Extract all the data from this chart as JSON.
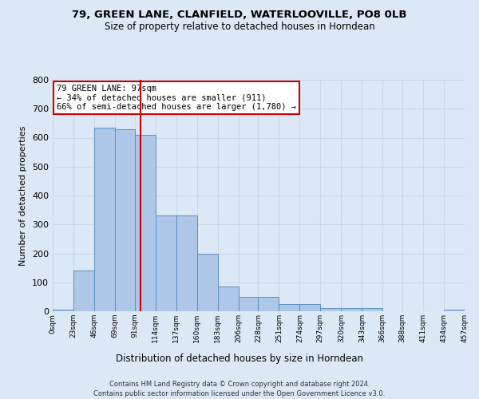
{
  "title1": "79, GREEN LANE, CLANFIELD, WATERLOOVILLE, PO8 0LB",
  "title2": "Size of property relative to detached houses in Horndean",
  "xlabel": "Distribution of detached houses by size in Horndean",
  "ylabel": "Number of detached properties",
  "footer1": "Contains HM Land Registry data © Crown copyright and database right 2024.",
  "footer2": "Contains public sector information licensed under the Open Government Licence v3.0.",
  "annotation_title": "79 GREEN LANE: 97sqm",
  "annotation_line1": "← 34% of detached houses are smaller (911)",
  "annotation_line2": "66% of semi-detached houses are larger (1,780) →",
  "property_size": 97,
  "bin_edges": [
    0,
    23,
    46,
    69,
    91,
    114,
    137,
    160,
    183,
    206,
    228,
    251,
    274,
    297,
    320,
    343,
    366,
    388,
    411,
    434,
    457
  ],
  "bar_values": [
    5,
    140,
    635,
    630,
    610,
    330,
    330,
    200,
    85,
    50,
    50,
    25,
    25,
    10,
    10,
    12,
    0,
    0,
    0,
    5
  ],
  "bar_color": "#aec6e8",
  "bar_edge_color": "#5a8fc0",
  "vline_color": "#cc0000",
  "annotation_box_color": "#ffffff",
  "annotation_box_edge": "#cc0000",
  "grid_color": "#c8d8ea",
  "ylim": [
    0,
    800
  ],
  "yticks": [
    0,
    100,
    200,
    300,
    400,
    500,
    600,
    700,
    800
  ],
  "bg_color": "#dce8f5"
}
